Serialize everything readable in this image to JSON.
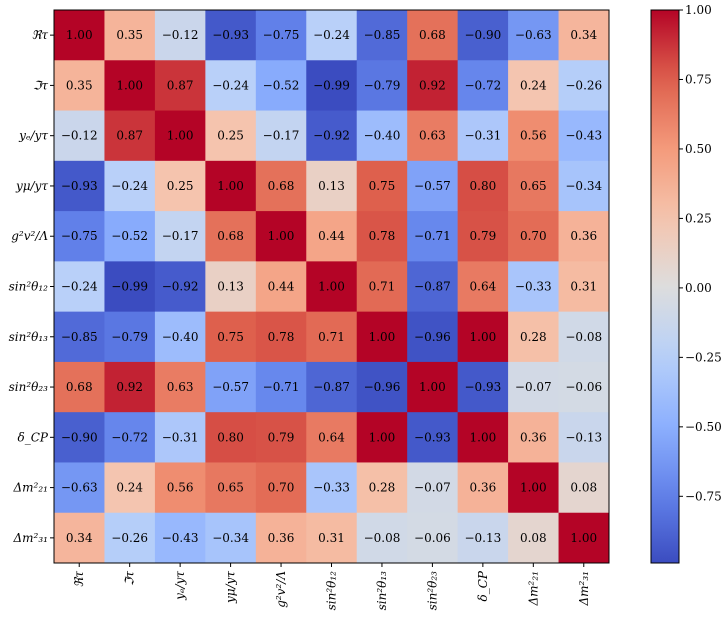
{
  "chart_data": {
    "type": "heatmap",
    "labels": [
      "ℜτ",
      "ℑτ",
      "yₑ/yτ",
      "yμ/yτ",
      "g²v²/Λ",
      "sin²θ₁₂",
      "sin²θ₁₃",
      "sin²θ₂₃",
      "δ_CP",
      "Δm²₂₁",
      "Δm²₃₁"
    ],
    "values": [
      [
        1.0,
        0.35,
        -0.12,
        -0.93,
        -0.75,
        -0.24,
        -0.85,
        0.68,
        -0.9,
        -0.63,
        0.34
      ],
      [
        0.35,
        1.0,
        0.87,
        -0.24,
        -0.52,
        -0.99,
        -0.79,
        0.92,
        -0.72,
        0.24,
        -0.26
      ],
      [
        -0.12,
        0.87,
        1.0,
        0.25,
        -0.17,
        -0.92,
        -0.4,
        0.63,
        -0.31,
        0.56,
        -0.43
      ],
      [
        -0.93,
        -0.24,
        0.25,
        1.0,
        0.68,
        0.13,
        0.75,
        -0.57,
        0.8,
        0.65,
        -0.34
      ],
      [
        -0.75,
        -0.52,
        -0.17,
        0.68,
        1.0,
        0.44,
        0.78,
        -0.71,
        0.79,
        0.7,
        0.36
      ],
      [
        -0.24,
        -0.99,
        -0.92,
        0.13,
        0.44,
        1.0,
        0.71,
        -0.87,
        0.64,
        -0.33,
        0.31
      ],
      [
        -0.85,
        -0.79,
        -0.4,
        0.75,
        0.78,
        0.71,
        1.0,
        -0.96,
        1.0,
        0.28,
        -0.08
      ],
      [
        0.68,
        0.92,
        0.63,
        -0.57,
        -0.71,
        -0.87,
        -0.96,
        1.0,
        -0.93,
        -0.07,
        -0.06
      ],
      [
        -0.9,
        -0.72,
        -0.31,
        0.8,
        0.79,
        0.64,
        1.0,
        -0.93,
        1.0,
        0.36,
        -0.13
      ],
      [
        -0.63,
        0.24,
        0.56,
        0.65,
        0.7,
        -0.33,
        0.28,
        -0.07,
        0.36,
        1.0,
        0.08
      ],
      [
        0.34,
        -0.26,
        -0.43,
        -0.34,
        0.36,
        0.31,
        -0.08,
        -0.06,
        -0.13,
        0.08,
        1.0
      ]
    ],
    "colormap": "coolwarm",
    "vmin": -0.99,
    "vmax": 1.0,
    "colorbar_ticks": [
      1.0,
      0.75,
      0.5,
      0.25,
      0.0,
      -0.25,
      -0.5,
      -0.75
    ],
    "colorbar_tick_labels": [
      "1.00",
      "0.75",
      "0.50",
      "0.25",
      "0.00",
      "−0.25",
      "−0.50",
      "−0.75"
    ]
  }
}
